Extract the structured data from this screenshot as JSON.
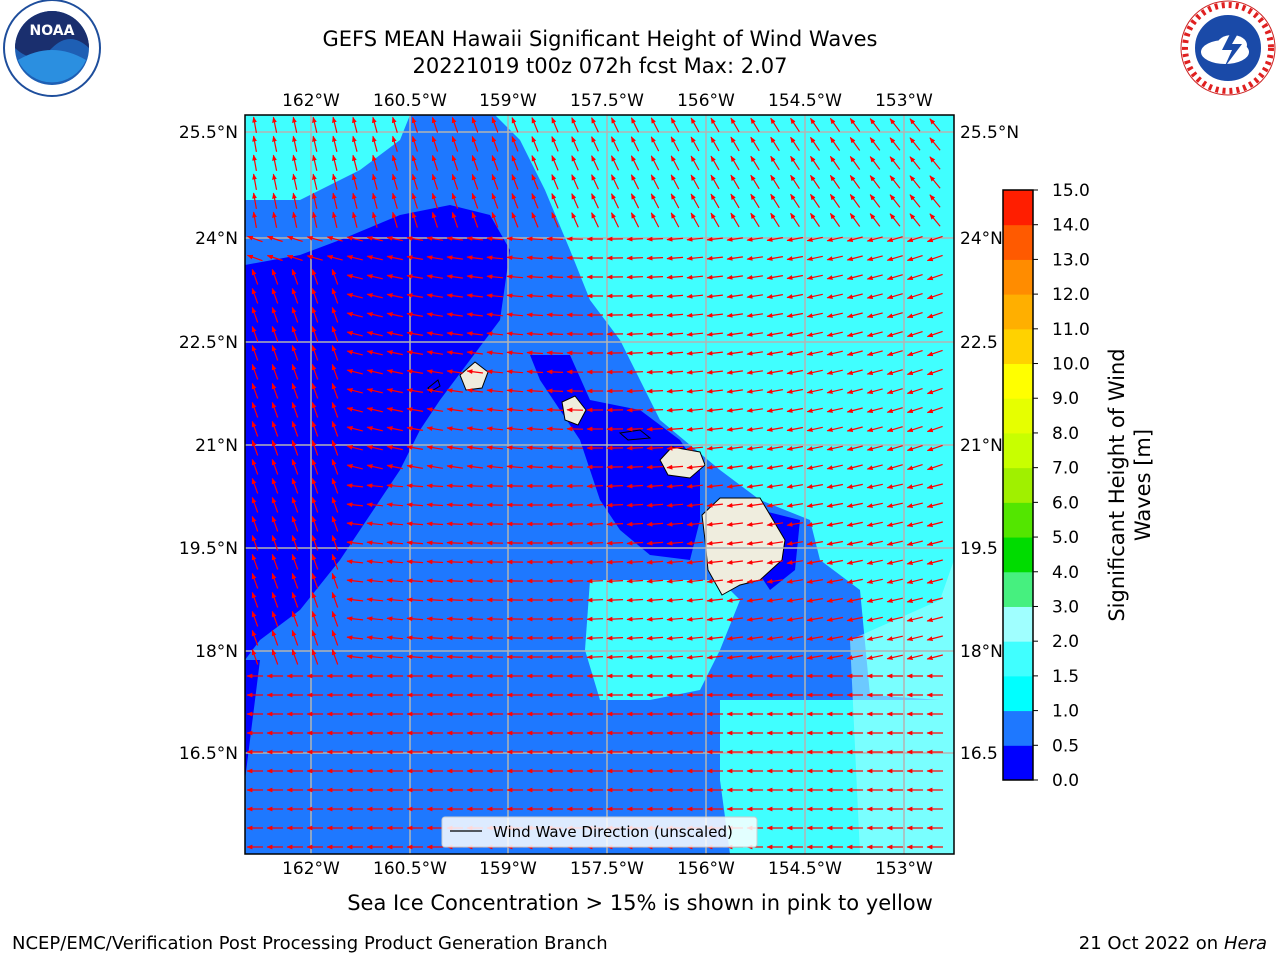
{
  "header": {
    "title_line1": "GEFS MEAN Hawaii Significant Height of Wind Waves",
    "title_line2": "20221019 t00z 072h fcst   Max: 2.07"
  },
  "logos": {
    "noaa": {
      "text": "NOAA",
      "ring_text": "NATIONAL OCEANIC AND ATMOSPHERIC ADMINISTRATION · U.S. DEPARTMENT OF COMMERCE"
    },
    "nws": {
      "ring_text": "NATIONAL WEATHER SERVICE"
    }
  },
  "map": {
    "lon_labels": [
      "162°W",
      "160.5°W",
      "159°W",
      "157.5°W",
      "156°W",
      "154.5°W",
      "153°W"
    ],
    "lat_labels": [
      "25.5°N",
      "24°N",
      "22.5°N",
      "21°N",
      "19.5°N",
      "18°N",
      "16.5°N"
    ],
    "lat_labels_right": [
      "25.5°N",
      "24°N",
      "22.5",
      "21°N",
      "19.5",
      "18°N",
      "16.5"
    ],
    "legend_label": "Wind Wave Direction (unscaled)",
    "arrow_color": "#ff0000",
    "land_color": "#efedde"
  },
  "colorbar": {
    "label_line1": "Significant Height of Wind",
    "label_line2": "Waves [m]",
    "ticks": [
      "0.0",
      "0.5",
      "1.0",
      "1.5",
      "2.0",
      "3.0",
      "4.0",
      "5.0",
      "6.0",
      "7.0",
      "8.0",
      "9.0",
      "10.0",
      "11.0",
      "12.0",
      "13.0",
      "14.0",
      "15.0"
    ],
    "colors": [
      "#0000ff",
      "#1e78ff",
      "#00ffff",
      "#40ffff",
      "#a0ffff",
      "#46f07f",
      "#00dc00",
      "#53e600",
      "#a0f000",
      "#c8ff00",
      "#e6ff00",
      "#ffff00",
      "#ffd200",
      "#ffaf00",
      "#ff8c00",
      "#ff5a00",
      "#ff1e00"
    ]
  },
  "footer": {
    "sea_ice_note": "Sea Ice Concentration > 15% is shown in pink to yellow",
    "credit": "NCEP/EMC/Verification Post Processing Product Generation Branch",
    "date_prefix": "21 Oct 2022 on ",
    "machine": "Hera"
  }
}
